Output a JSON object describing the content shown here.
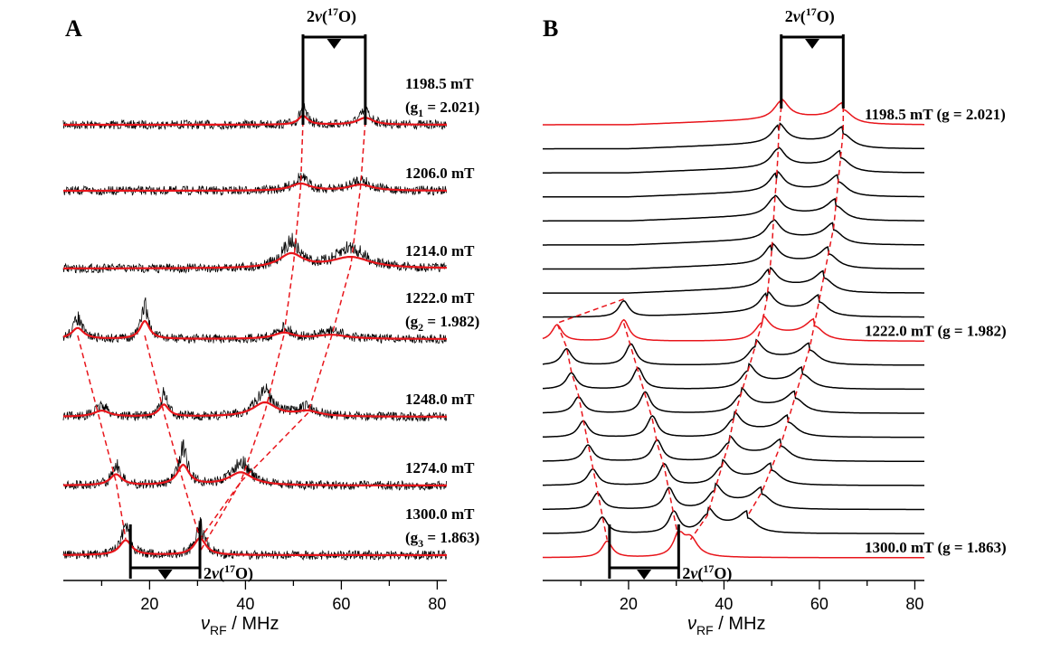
{
  "panels": {
    "A": {
      "panel_label": "A",
      "xaxis_label": "ν",
      "xaxis_label_sub": "RF",
      "xaxis_label_unit": " / MHz",
      "xticks": [
        "20",
        "40",
        "60",
        "80"
      ],
      "bracket_label": "2ν(17O)"
    },
    "B": {
      "panel_label": "B",
      "xaxis_label": "ν",
      "xaxis_label_sub": "RF",
      "xaxis_label_unit": " / MHz",
      "xticks": [
        "20",
        "40",
        "60",
        "80"
      ],
      "bracket_label": "2ν(17O)"
    }
  },
  "colors": {
    "experiment": "#000000",
    "simulation": "#e8151b",
    "guide": "#e8151b"
  },
  "chart_data": [
    {
      "type": "line",
      "panel": "A",
      "x_unit": "MHz",
      "xlim": [
        2,
        82
      ],
      "xticks": [
        20,
        40,
        60,
        80
      ],
      "grid": false,
      "traces": [
        {
          "field": "1198.5 mT",
          "g_label": "(g1 = 2.021)",
          "g_sub": "1",
          "g_value": "2.021",
          "sim_peaks": [
            [
              52,
              0.45,
              1.2
            ],
            [
              65,
              0.35,
              2
            ]
          ]
        },
        {
          "field": "1206.0 mT",
          "g_label": "",
          "sim_peaks": [
            [
              51.5,
              0.35,
              2.5
            ],
            [
              64,
              0.3,
              3
            ]
          ]
        },
        {
          "field": "1214.0 mT",
          "g_label": "",
          "sim_peaks": [
            [
              49.5,
              0.7,
              3
            ],
            [
              62,
              0.55,
              5
            ]
          ]
        },
        {
          "field": "1222.0 mT",
          "g_label": "(g2 = 1.982)",
          "g_sub": "2",
          "g_value": "1.982",
          "sim_peaks": [
            [
              5,
              0.55,
              1.5
            ],
            [
              19,
              0.9,
              1.2
            ],
            [
              48,
              0.3,
              2.5
            ],
            [
              58,
              0.2,
              4
            ]
          ]
        },
        {
          "field": "1248.0 mT",
          "g_label": "",
          "sim_peaks": [
            [
              10,
              0.3,
              2
            ],
            [
              23,
              0.6,
              1.2
            ],
            [
              44,
              0.7,
              3
            ],
            [
              53,
              0.25,
              3
            ]
          ]
        },
        {
          "field": "1274.0 mT",
          "g_label": "",
          "sim_peaks": [
            [
              13,
              0.55,
              1.5
            ],
            [
              27,
              1.0,
              1.5
            ],
            [
              39,
              0.65,
              3
            ]
          ]
        },
        {
          "field": "1300.0 mT",
          "g_label": "(g3 = 1.863)",
          "g_sub": "3",
          "g_value": "1.863",
          "sim_peaks": [
            [
              15,
              0.75,
              1.5
            ],
            [
              30.5,
              0.85,
              1.5
            ]
          ]
        }
      ],
      "bracket_top": {
        "x_left": 52,
        "x_right": 65
      },
      "bracket_bottom": {
        "x_left": 16,
        "x_right": 30.5
      }
    },
    {
      "type": "line",
      "panel": "B",
      "x_unit": "MHz",
      "xlim": [
        2,
        82
      ],
      "xticks": [
        20,
        40,
        60,
        80
      ],
      "grid": false,
      "traces_count": 19,
      "labelled_traces": [
        {
          "index": 0,
          "label": "1198.5 mT (g = 2.021)",
          "highlight": true
        },
        {
          "index": 9,
          "label": "1222.0 mT (g = 1.982)",
          "highlight": true
        },
        {
          "index": 18,
          "label": "1300.0 mT (g = 1.863)",
          "highlight": true
        }
      ],
      "peak_tracks": {
        "p1": [
          null,
          null,
          null,
          null,
          null,
          null,
          null,
          null,
          19,
          5,
          7,
          8,
          9.5,
          10.5,
          11.5,
          12.5,
          13.5,
          14.5,
          15.5
        ],
        "p2": [
          null,
          null,
          null,
          null,
          null,
          null,
          null,
          null,
          null,
          19,
          20.5,
          22,
          23.5,
          25,
          26,
          27.5,
          28.5,
          29.5,
          30.5
        ],
        "p3": [
          52,
          51.5,
          51.3,
          51,
          50.6,
          50.3,
          50,
          49.5,
          49,
          48,
          46.5,
          45,
          43.5,
          42,
          41,
          39.5,
          38,
          36.5,
          33
        ],
        "p4": [
          65,
          65,
          64.5,
          64,
          63.5,
          63,
          62,
          61,
          60,
          59,
          58,
          56.5,
          55,
          53.5,
          52,
          50,
          48,
          45,
          null
        ]
      },
      "bracket_top": {
        "x_left": 52,
        "x_right": 65
      },
      "bracket_bottom": {
        "x_left": 16,
        "x_right": 30.5
      }
    }
  ]
}
